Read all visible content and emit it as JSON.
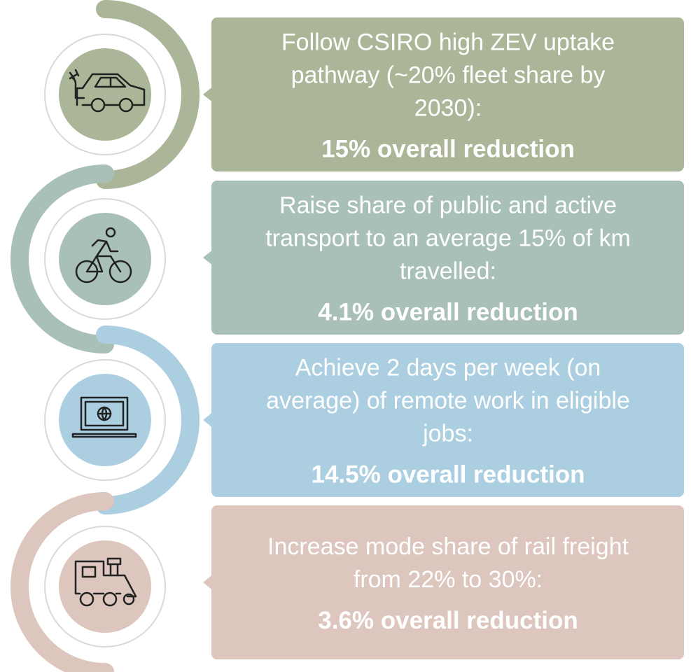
{
  "items": [
    {
      "description_lines": [
        "Follow CSIRO high ZEV uptake",
        "pathway (~20% fleet share by",
        "2030):"
      ],
      "result": "15% overall reduction"
    },
    {
      "description_lines": [
        "Raise share of public and active",
        "transport to an average 15% of km",
        "travelled:"
      ],
      "result": "4.1% overall reduction"
    },
    {
      "description_lines": [
        "Achieve 2 days per week (on",
        "average) of remote work in eligible",
        "jobs:"
      ],
      "result": "14.5% overall reduction"
    },
    {
      "description_lines": [
        "Increase mode share of rail freight",
        "from 22% to 30%:"
      ],
      "result": "3.6% overall reduction"
    }
  ]
}
